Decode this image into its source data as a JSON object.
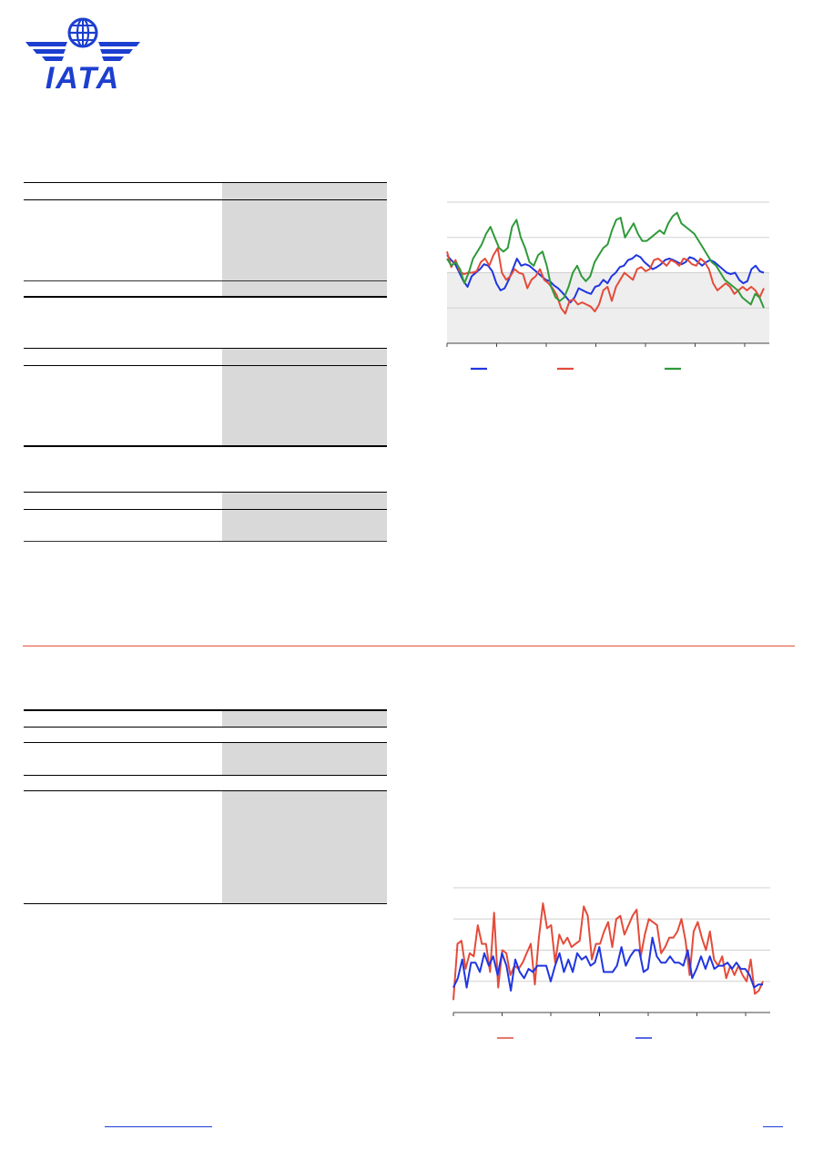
{
  "brand": {
    "logo_text": "IATA",
    "logo_color": "#1c3fd0"
  },
  "colors": {
    "accent_divider": "#e0503a",
    "table_shade": "#d9d9d9",
    "series_blue": "#2036e0",
    "series_red": "#e44b3a",
    "series_green": "#2f9a3a",
    "band_fill": "#eeeeee",
    "grid": "#d0d0d0",
    "link": "#1a3fd6"
  },
  "chart_data": [
    {
      "type": "line",
      "band": true,
      "series": [
        {
          "color": "#2036e0",
          "values": [
            56.5,
            55.8,
            55.2,
            54.0,
            52.8,
            52.0,
            53.5,
            54.0,
            54.5,
            55.2,
            55.0,
            54.2,
            52.5,
            51.5,
            51.8,
            53.0,
            54.5,
            56.0,
            55.0,
            55.2,
            55.0,
            54.5,
            54.0,
            53.5,
            53.0,
            52.8,
            52.2,
            51.8,
            51.2,
            50.5,
            49.8,
            50.5,
            51.8,
            51.5,
            51.2,
            51.0,
            52.0,
            52.2,
            53.0,
            52.5,
            53.5,
            54.0,
            54.8,
            55.0,
            55.8,
            56.0,
            56.5,
            56.2,
            55.5,
            55.0,
            54.5,
            54.8,
            55.2,
            55.8,
            56.0,
            55.8,
            55.5,
            55.2,
            55.5,
            56.2,
            56.0,
            55.5,
            55.0,
            55.5,
            55.8,
            55.5,
            55.0,
            54.5,
            54.0,
            53.8,
            54.0,
            53.0,
            52.5,
            52.8,
            54.5,
            55.0,
            54.2,
            54.0
          ]
        },
        {
          "color": "#e44b3a",
          "values": [
            57.0,
            54.8,
            55.8,
            54.2,
            53.8,
            54.0,
            54.0,
            54.2,
            55.5,
            56.0,
            55.0,
            56.5,
            57.5,
            54.0,
            53.0,
            53.5,
            54.5,
            54.0,
            53.8,
            51.8,
            53.0,
            53.5,
            54.5,
            53.0,
            52.5,
            51.8,
            50.8,
            49.0,
            48.2,
            50.0,
            50.2,
            49.5,
            49.8,
            49.5,
            49.2,
            48.5,
            49.5,
            51.5,
            52.0,
            50.0,
            52.0,
            53.0,
            54.0,
            53.5,
            53.0,
            54.5,
            54.8,
            54.2,
            54.5,
            55.8,
            56.0,
            55.5,
            55.0,
            55.8,
            55.5,
            55.0,
            56.0,
            55.8,
            55.2,
            55.0,
            56.0,
            55.5,
            54.5,
            52.5,
            51.5,
            52.0,
            52.5,
            52.0,
            51.0,
            51.5,
            52.0,
            51.5,
            52.0,
            51.5,
            50.5,
            51.8
          ]
        },
        {
          "color": "#2f9a3a",
          "values": [
            56.0,
            55.0,
            55.5,
            54.5,
            52.5,
            54.0,
            56.0,
            57.0,
            58.0,
            59.5,
            60.5,
            59.0,
            57.5,
            57.0,
            57.5,
            60.5,
            61.5,
            59.0,
            57.5,
            55.5,
            55.0,
            56.5,
            57.0,
            55.0,
            52.0,
            50.5,
            50.0,
            50.5,
            52.0,
            54.0,
            55.0,
            53.5,
            52.8,
            53.5,
            55.5,
            56.5,
            57.5,
            58.0,
            60.0,
            61.5,
            61.8,
            59.0,
            60.0,
            61.0,
            59.5,
            58.5,
            58.5,
            59.0,
            59.5,
            60.0,
            59.5,
            61.0,
            62.0,
            62.5,
            61.0,
            60.5,
            60.0,
            59.5,
            58.5,
            57.5,
            56.5,
            55.5,
            55.0,
            54.0,
            53.0,
            52.5,
            52.0,
            51.5,
            50.5,
            50.0,
            49.5,
            51.0,
            50.5,
            49.0
          ]
        }
      ],
      "legend": [
        {
          "color": "#2036e0"
        },
        {
          "color": "#e44b3a"
        },
        {
          "color": "#2f9a3a"
        }
      ]
    },
    {
      "type": "line",
      "band": false,
      "series": [
        {
          "color": "#e44b3a",
          "values": [
            4,
            22,
            23,
            14,
            19,
            18,
            28,
            22,
            22,
            13,
            32,
            8,
            20,
            19,
            12,
            15,
            14,
            16,
            19,
            22,
            9,
            24,
            35,
            27,
            28,
            16,
            25,
            22,
            24,
            21,
            22,
            23,
            34,
            31,
            17,
            22,
            22,
            26,
            29,
            21,
            30,
            31,
            25,
            28,
            31,
            33,
            18,
            25,
            30,
            29,
            28,
            19,
            21,
            24,
            24,
            26,
            30,
            23,
            12,
            26,
            29,
            24,
            20,
            26,
            17,
            15,
            18,
            11,
            15,
            12,
            15,
            12,
            10,
            17,
            6,
            7,
            10
          ]
        },
        {
          "color": "#2036e0",
          "values": [
            8,
            11,
            17,
            8,
            16,
            16,
            13,
            19,
            15,
            18,
            12,
            19,
            15,
            7,
            17,
            13,
            11,
            14,
            13,
            15,
            15,
            15,
            10,
            15,
            19,
            13,
            17,
            13,
            19,
            17,
            18,
            15,
            16,
            21,
            13,
            13,
            13,
            15,
            21,
            15,
            18,
            20,
            20,
            13,
            14,
            24,
            18,
            16,
            16,
            18,
            16,
            16,
            15,
            20,
            11,
            14,
            18,
            14,
            18,
            14,
            15,
            15,
            16,
            14,
            16,
            14,
            14,
            12,
            8,
            9,
            9
          ]
        }
      ],
      "legend": [
        {
          "color": "#e44b3a"
        },
        {
          "color": "#2036e0"
        }
      ]
    }
  ],
  "footer": {
    "link_color": "#1a3fd6"
  }
}
